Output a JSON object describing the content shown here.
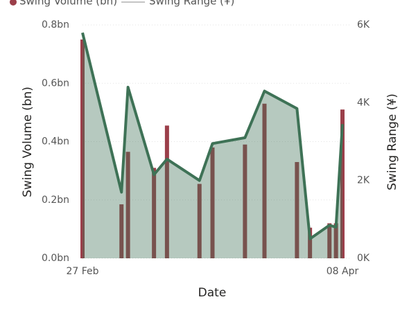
{
  "chart_data": {
    "type": "bar-line",
    "x_label": "Date",
    "y_label": "Swing Volume (bn)",
    "y2_label": "Swing Range (¥)",
    "x": [
      0,
      6,
      7,
      11,
      13,
      18,
      20,
      25,
      28,
      33,
      35,
      38,
      39,
      40
    ],
    "xlim": [
      0,
      40
    ],
    "xticks": [
      {
        "value": 0,
        "label": "27 Feb"
      },
      {
        "value": 40,
        "label": "08 Apr"
      }
    ],
    "series": [
      {
        "name": "Swing Volume (bn)",
        "color": "#9b3f4a",
        "kind": "bar",
        "axis": "y",
        "values": [
          0.75,
          0.185,
          0.365,
          0.31,
          0.455,
          0.255,
          0.38,
          0.39,
          0.53,
          0.33,
          0.105,
          0.12,
          0.12,
          0.51
        ]
      },
      {
        "name": "Swing Range (¥)",
        "color": "#3e7256",
        "kind": "area",
        "axis": "y2",
        "values": [
          5.8,
          1.7,
          4.4,
          2.15,
          2.55,
          2.0,
          2.95,
          3.1,
          4.3,
          3.85,
          0.5,
          0.85,
          0.8,
          3.45
        ]
      }
    ],
    "ylim": [
      0,
      0.8
    ],
    "yticks": [
      {
        "value": 0,
        "label": "0.0bn"
      },
      {
        "value": 0.2,
        "label": "0.2bn"
      },
      {
        "value": 0.4,
        "label": "0.4bn"
      },
      {
        "value": 0.6,
        "label": "0.6bn"
      },
      {
        "value": 0.8,
        "label": "0.8bn"
      }
    ],
    "y2lim": [
      0,
      6
    ],
    "y2ticks": [
      {
        "value": 0,
        "label": "0K"
      },
      {
        "value": 2,
        "label": "2K"
      },
      {
        "value": 4,
        "label": "4K"
      },
      {
        "value": 6,
        "label": "6K"
      }
    ],
    "grid": true,
    "legend": "top"
  }
}
